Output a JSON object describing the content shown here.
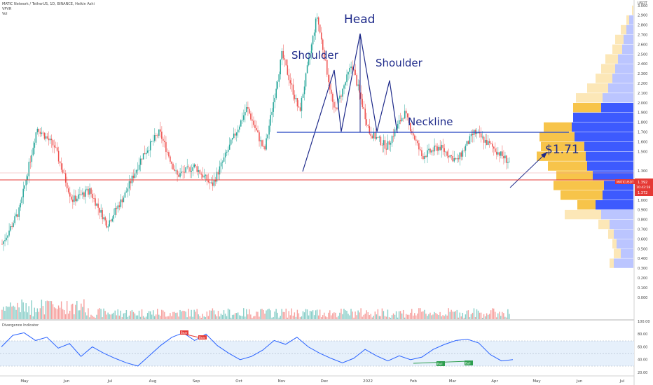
{
  "header": {
    "symbol_line": "MATIC Network / TetherUS, 1D, BINANCE, Heikin Ashi",
    "indicator_1": "VPVR",
    "indicator_2": "Vol"
  },
  "price_axis": {
    "unit": "USDT",
    "ticks": [
      "3.000",
      "2.900",
      "2.800",
      "2.700",
      "2.600",
      "2.500",
      "2.400",
      "2.300",
      "2.200",
      "2.100",
      "2.000",
      "1.900",
      "1.800",
      "1.700",
      "1.600",
      "1.500",
      "1.300",
      "1.200",
      "1.100",
      "1.000",
      "0.900",
      "0.800",
      "0.700",
      "0.600",
      "0.500",
      "0.400",
      "0.300",
      "0.200",
      "0.100",
      "0.000"
    ],
    "last_price_label": "MATICUSDT",
    "last_price": "1.392",
    "countdown": "10:42:58",
    "prev_label": "1.372"
  },
  "time_axis": {
    "labels": [
      "May",
      "Jun",
      "Jul",
      "Aug",
      "Sep",
      "Oct",
      "Nov",
      "Dec",
      "2022",
      "Feb",
      "Mar",
      "Apr",
      "May",
      "Jun",
      "Jul"
    ]
  },
  "annotations": {
    "head": "Head",
    "left_shoulder": "Shoulder",
    "right_shoulder": "Shoulder",
    "neckline": "Neckline",
    "target": "$1.71"
  },
  "oscillator": {
    "title": "Divergence Indicator",
    "ticks": [
      "100.00",
      "80.00",
      "60.00",
      "40.00",
      "20.00"
    ],
    "bear_label": "Bear",
    "bull_label": "Bull"
  },
  "colors": {
    "up": "#26a69a",
    "down": "#ef5350",
    "annotation": "#1e2a8a",
    "neckline": "#2040c0",
    "price_line": "#e53935",
    "vp_up": "#f7c44a",
    "vp_down": "#3d5afe",
    "osc_line": "#2962ff",
    "osc_band": "#e6f0fb"
  },
  "chart_data": [
    {
      "type": "candlestick",
      "title": "MATIC Network / TetherUS, 1D, BINANCE, Heikin Ashi",
      "ylabel": "USDT",
      "ylim": [
        0.2,
        3.1
      ],
      "x": [
        "May",
        "Jun",
        "Jul",
        "Aug",
        "Sep",
        "Oct",
        "Nov",
        "Dec",
        "2022",
        "Feb",
        "Mar",
        "Apr"
      ],
      "close_path": [
        0.55,
        0.9,
        1.75,
        1.55,
        1.0,
        1.1,
        0.75,
        1.05,
        1.45,
        1.7,
        1.25,
        1.35,
        1.15,
        1.55,
        1.95,
        1.5,
        2.5,
        1.9,
        2.9,
        1.9,
        2.4,
        1.7,
        1.55,
        1.9,
        1.45,
        1.55,
        1.4,
        1.7,
        1.55,
        1.39
      ],
      "pattern": "head and shoulders",
      "neckline": 1.9,
      "target": 1.71,
      "last_price": 1.392
    },
    {
      "type": "line",
      "title": "Divergence Indicator",
      "ylim": [
        20,
        100
      ],
      "band": [
        30,
        70
      ],
      "values": [
        60,
        78,
        82,
        70,
        75,
        58,
        65,
        45,
        60,
        50,
        42,
        35,
        30,
        46,
        62,
        75,
        82,
        70,
        80,
        62,
        50,
        40,
        45,
        55,
        70,
        64,
        75,
        60,
        50,
        42,
        35,
        42,
        56,
        46,
        38,
        46,
        40,
        44,
        56,
        64,
        70,
        72,
        66,
        48,
        38,
        40
      ]
    }
  ]
}
